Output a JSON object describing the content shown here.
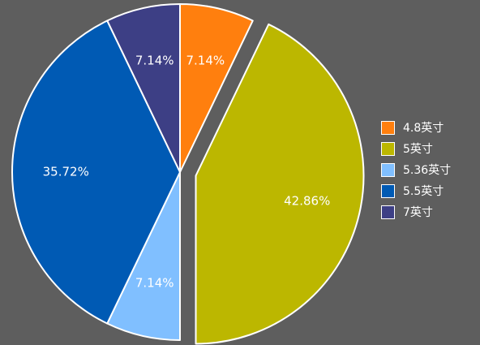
{
  "chart_data": {
    "type": "pie",
    "title": "",
    "legend_position": "right",
    "slices": [
      {
        "label": "4.8英寸",
        "value": 7.14,
        "value_label": "7.14%",
        "color": "#ff7f0e",
        "exploded": false
      },
      {
        "label": "5英寸",
        "value": 42.86,
        "value_label": "42.86%",
        "color": "#bcb700",
        "exploded": true
      },
      {
        "label": "5.36英寸",
        "value": 7.14,
        "value_label": "7.14%",
        "color": "#80bfff",
        "exploded": false
      },
      {
        "label": "5.5英寸",
        "value": 35.72,
        "value_label": "35.72%",
        "color": "#005ab4",
        "exploded": false
      },
      {
        "label": "7英寸",
        "value": 7.14,
        "value_label": "7.14%",
        "color": "#3d3f85",
        "exploded": false
      }
    ]
  },
  "colors": {
    "background": "#5e5e5e",
    "slice_border": "#ffffff",
    "text": "#ffffff"
  }
}
